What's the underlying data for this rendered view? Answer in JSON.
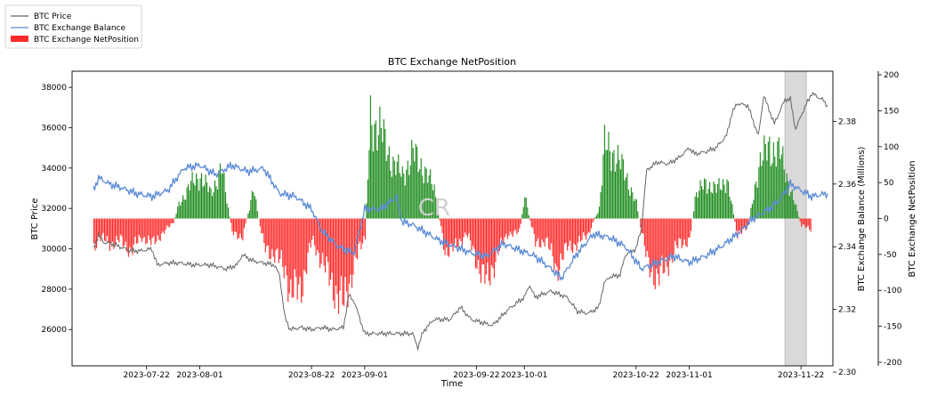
{
  "chart_data": {
    "type": "line",
    "title": "BTC Exchange NetPosition",
    "xlabel": "Time",
    "ylabel_left": "BTC Price",
    "ylabel_right1": "BTC Exchange Balance (Millions)",
    "ylabel_right2": "BTC Exchange NetPosition",
    "watermark": "CR",
    "legend_position": "top-left",
    "legend": [
      {
        "label": "BTC Price",
        "kind": "line",
        "color": "#666666"
      },
      {
        "label": "BTC Exchange Balance",
        "kind": "line",
        "color": "#5b8bd6"
      },
      {
        "label": "BTC Exchange NetPosition",
        "kind": "bar",
        "color": "#ff2a2a"
      }
    ],
    "x_range": [
      "2023-07-08",
      "2023-11-28"
    ],
    "x_ticks": [
      "2023-07-22",
      "2023-08-01",
      "2023-08-22",
      "2023-09-01",
      "2023-09-22",
      "2023-10-01",
      "2023-10-22",
      "2023-11-01",
      "2023-11-22"
    ],
    "y_left": {
      "range": [
        24200,
        38800
      ],
      "ticks": [
        26000,
        28000,
        30000,
        32000,
        34000,
        36000,
        38000
      ]
    },
    "y_right_balance": {
      "range": [
        2.302,
        2.396
      ],
      "ticks": [
        2.3,
        2.32,
        2.34,
        2.36,
        2.38
      ]
    },
    "y_right_netposition": {
      "range": [
        -205,
        205
      ],
      "ticks": [
        -200,
        -150,
        -100,
        -50,
        0,
        50,
        100,
        150,
        200
      ]
    },
    "highlight_span": [
      "2023-11-19",
      "2023-11-23"
    ],
    "positive_color": "#1e8c1e",
    "negative_color": "#ff2a2a",
    "series": [
      {
        "name": "BTC Price",
        "axis": "left",
        "color": "#666666",
        "points": [
          [
            "2023-07-12",
            30000
          ],
          [
            "2023-07-13",
            30700
          ],
          [
            "2023-07-14",
            30300
          ],
          [
            "2023-07-15",
            30300
          ],
          [
            "2023-07-17",
            30100
          ],
          [
            "2023-07-19",
            29900
          ],
          [
            "2023-07-21",
            29900
          ],
          [
            "2023-07-23",
            30000
          ],
          [
            "2023-07-24",
            29200
          ],
          [
            "2023-07-26",
            29300
          ],
          [
            "2023-07-28",
            29300
          ],
          [
            "2023-07-31",
            29200
          ],
          [
            "2023-08-03",
            29200
          ],
          [
            "2023-08-06",
            29000
          ],
          [
            "2023-08-08",
            29200
          ],
          [
            "2023-08-09",
            29700
          ],
          [
            "2023-08-11",
            29400
          ],
          [
            "2023-08-13",
            29300
          ],
          [
            "2023-08-15",
            29200
          ],
          [
            "2023-08-16",
            28700
          ],
          [
            "2023-08-17",
            26600
          ],
          [
            "2023-08-18",
            26000
          ],
          [
            "2023-08-20",
            26100
          ],
          [
            "2023-08-22",
            26000
          ],
          [
            "2023-08-24",
            26100
          ],
          [
            "2023-08-26",
            26000
          ],
          [
            "2023-08-28",
            26100
          ],
          [
            "2023-08-29",
            27700
          ],
          [
            "2023-08-30",
            27400
          ],
          [
            "2023-09-01",
            25800
          ],
          [
            "2023-09-04",
            25800
          ],
          [
            "2023-09-07",
            25800
          ],
          [
            "2023-09-10",
            25800
          ],
          [
            "2023-09-11",
            25100
          ],
          [
            "2023-09-12",
            25900
          ],
          [
            "2023-09-14",
            26500
          ],
          [
            "2023-09-17",
            26500
          ],
          [
            "2023-09-19",
            27100
          ],
          [
            "2023-09-21",
            26500
          ],
          [
            "2023-09-25",
            26200
          ],
          [
            "2023-09-28",
            27000
          ],
          [
            "2023-10-01",
            27600
          ],
          [
            "2023-10-02",
            28200
          ],
          [
            "2023-10-03",
            27600
          ],
          [
            "2023-10-06",
            27900
          ],
          [
            "2023-10-09",
            27600
          ],
          [
            "2023-10-11",
            26900
          ],
          [
            "2023-10-13",
            26800
          ],
          [
            "2023-10-15",
            27100
          ],
          [
            "2023-10-16",
            28300
          ],
          [
            "2023-10-17",
            28600
          ],
          [
            "2023-10-19",
            28700
          ],
          [
            "2023-10-20",
            29700
          ],
          [
            "2023-10-22",
            30000
          ],
          [
            "2023-10-23",
            31000
          ],
          [
            "2023-10-24",
            33900
          ],
          [
            "2023-10-26",
            34300
          ],
          [
            "2023-10-28",
            34200
          ],
          [
            "2023-10-30",
            34500
          ],
          [
            "2023-11-01",
            35000
          ],
          [
            "2023-11-02",
            34700
          ],
          [
            "2023-11-04",
            34800
          ],
          [
            "2023-11-06",
            35000
          ],
          [
            "2023-11-08",
            35600
          ],
          [
            "2023-11-09",
            36700
          ],
          [
            "2023-11-10",
            37200
          ],
          [
            "2023-11-12",
            37100
          ],
          [
            "2023-11-14",
            35600
          ],
          [
            "2023-11-15",
            37600
          ],
          [
            "2023-11-17",
            36200
          ],
          [
            "2023-11-19",
            37400
          ],
          [
            "2023-11-20",
            37400
          ],
          [
            "2023-11-21",
            35900
          ],
          [
            "2023-11-22",
            36600
          ],
          [
            "2023-11-24",
            37700
          ],
          [
            "2023-11-26",
            37400
          ],
          [
            "2023-11-27",
            37100
          ]
        ]
      },
      {
        "name": "BTC Exchange Balance",
        "axis": "right1",
        "color": "#5b8bd6",
        "points": [
          [
            "2023-07-12",
            2.358
          ],
          [
            "2023-07-13",
            2.362
          ],
          [
            "2023-07-15",
            2.36
          ],
          [
            "2023-07-17",
            2.359
          ],
          [
            "2023-07-20",
            2.357
          ],
          [
            "2023-07-23",
            2.356
          ],
          [
            "2023-07-26",
            2.358
          ],
          [
            "2023-07-29",
            2.365
          ],
          [
            "2023-08-01",
            2.366
          ],
          [
            "2023-08-04",
            2.363
          ],
          [
            "2023-08-07",
            2.366
          ],
          [
            "2023-08-10",
            2.364
          ],
          [
            "2023-08-13",
            2.365
          ],
          [
            "2023-08-16",
            2.357
          ],
          [
            "2023-08-19",
            2.356
          ],
          [
            "2023-08-22",
            2.352
          ],
          [
            "2023-08-24",
            2.345
          ],
          [
            "2023-08-27",
            2.34
          ],
          [
            "2023-08-30",
            2.338
          ],
          [
            "2023-09-01",
            2.352
          ],
          [
            "2023-09-04",
            2.352
          ],
          [
            "2023-09-07",
            2.356
          ],
          [
            "2023-09-08",
            2.348
          ],
          [
            "2023-09-10",
            2.347
          ],
          [
            "2023-09-12",
            2.345
          ],
          [
            "2023-09-15",
            2.342
          ],
          [
            "2023-09-18",
            2.34
          ],
          [
            "2023-09-21",
            2.338
          ],
          [
            "2023-09-24",
            2.337
          ],
          [
            "2023-09-27",
            2.341
          ],
          [
            "2023-09-30",
            2.339
          ],
          [
            "2023-10-03",
            2.337
          ],
          [
            "2023-10-06",
            2.333
          ],
          [
            "2023-10-08",
            2.33
          ],
          [
            "2023-10-11",
            2.338
          ],
          [
            "2023-10-14",
            2.344
          ],
          [
            "2023-10-17",
            2.343
          ],
          [
            "2023-10-20",
            2.34
          ],
          [
            "2023-10-23",
            2.333
          ],
          [
            "2023-10-26",
            2.335
          ],
          [
            "2023-10-29",
            2.337
          ],
          [
            "2023-11-01",
            2.335
          ],
          [
            "2023-11-04",
            2.337
          ],
          [
            "2023-11-07",
            2.34
          ],
          [
            "2023-11-10",
            2.344
          ],
          [
            "2023-11-13",
            2.349
          ],
          [
            "2023-11-16",
            2.352
          ],
          [
            "2023-11-18",
            2.355
          ],
          [
            "2023-11-20",
            2.36
          ],
          [
            "2023-11-22",
            2.358
          ],
          [
            "2023-11-24",
            2.356
          ],
          [
            "2023-11-27",
            2.357
          ]
        ]
      },
      {
        "name": "BTC Exchange NetPosition",
        "axis": "right2",
        "color": "#ff2a2a",
        "points": [
          [
            "2023-07-12",
            -40
          ],
          [
            "2023-07-13",
            -25
          ],
          [
            "2023-07-15",
            -35
          ],
          [
            "2023-07-17",
            -30
          ],
          [
            "2023-07-19",
            -45
          ],
          [
            "2023-07-21",
            -25
          ],
          [
            "2023-07-23",
            -35
          ],
          [
            "2023-07-25",
            -20
          ],
          [
            "2023-07-27",
            -5
          ],
          [
            "2023-07-28",
            20
          ],
          [
            "2023-07-30",
            45
          ],
          [
            "2023-08-01",
            60
          ],
          [
            "2023-08-03",
            35
          ],
          [
            "2023-08-05",
            70
          ],
          [
            "2023-08-07",
            -20
          ],
          [
            "2023-08-09",
            -25
          ],
          [
            "2023-08-11",
            40
          ],
          [
            "2023-08-13",
            -40
          ],
          [
            "2023-08-15",
            -50
          ],
          [
            "2023-08-17",
            -70
          ],
          [
            "2023-08-18",
            -105
          ],
          [
            "2023-08-20",
            -95
          ],
          [
            "2023-08-22",
            -30
          ],
          [
            "2023-08-24",
            -60
          ],
          [
            "2023-08-26",
            -95
          ],
          [
            "2023-08-28",
            -120
          ],
          [
            "2023-08-30",
            -60
          ],
          [
            "2023-09-01",
            -25
          ],
          [
            "2023-09-02",
            140
          ],
          [
            "2023-09-04",
            120
          ],
          [
            "2023-09-06",
            80
          ],
          [
            "2023-09-08",
            60
          ],
          [
            "2023-09-10",
            90
          ],
          [
            "2023-09-12",
            70
          ],
          [
            "2023-09-14",
            40
          ],
          [
            "2023-09-16",
            -45
          ],
          [
            "2023-09-18",
            -40
          ],
          [
            "2023-09-20",
            -20
          ],
          [
            "2023-09-22",
            -60
          ],
          [
            "2023-09-24",
            -90
          ],
          [
            "2023-09-26",
            -45
          ],
          [
            "2023-09-28",
            -20
          ],
          [
            "2023-09-30",
            -20
          ],
          [
            "2023-10-01",
            30
          ],
          [
            "2023-10-03",
            -35
          ],
          [
            "2023-10-05",
            -30
          ],
          [
            "2023-10-07",
            -70
          ],
          [
            "2023-10-09",
            -40
          ],
          [
            "2023-10-11",
            -35
          ],
          [
            "2023-10-13",
            -20
          ],
          [
            "2023-10-15",
            15
          ],
          [
            "2023-10-16",
            100
          ],
          [
            "2023-10-18",
            90
          ],
          [
            "2023-10-20",
            60
          ],
          [
            "2023-10-22",
            20
          ],
          [
            "2023-10-24",
            -60
          ],
          [
            "2023-10-26",
            -85
          ],
          [
            "2023-10-28",
            -60
          ],
          [
            "2023-10-30",
            -35
          ],
          [
            "2023-11-01",
            -30
          ],
          [
            "2023-11-02",
            30
          ],
          [
            "2023-11-04",
            50
          ],
          [
            "2023-11-06",
            40
          ],
          [
            "2023-11-08",
            55
          ],
          [
            "2023-11-10",
            -25
          ],
          [
            "2023-11-12",
            -10
          ],
          [
            "2023-11-14",
            75
          ],
          [
            "2023-11-16",
            100
          ],
          [
            "2023-11-18",
            90
          ],
          [
            "2023-11-20",
            40
          ],
          [
            "2023-11-22",
            -10
          ],
          [
            "2023-11-24",
            -15
          ]
        ]
      }
    ]
  }
}
